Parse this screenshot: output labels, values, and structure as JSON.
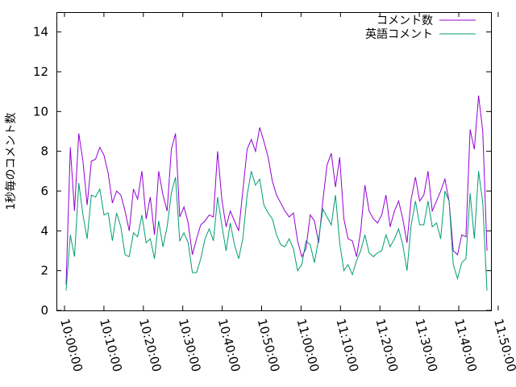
{
  "chart_data": {
    "type": "line",
    "title": "",
    "xlabel": "",
    "ylabel": "1秒毎のコメント数",
    "ylim": [
      0,
      15
    ],
    "yticks": [
      0,
      2,
      4,
      6,
      8,
      10,
      12,
      14
    ],
    "xlim_minutes": [
      0,
      50
    ],
    "xticks": [
      "10:00:00",
      "10:10:00",
      "10:20:00",
      "10:30:00",
      "10:40:00",
      "10:50:00",
      "11:00:00",
      "11:10:00",
      "11:20:00",
      "11:30:00",
      "11:40:00",
      "11:50:00"
    ],
    "legend_position": "top-right",
    "grid": false,
    "series": [
      {
        "name": "コメント数",
        "color": "#9400d3",
        "values": [
          1.3,
          8.2,
          5.0,
          8.9,
          7.5,
          5.3,
          7.5,
          7.6,
          8.2,
          7.8,
          6.9,
          5.4,
          6.0,
          5.8,
          5.0,
          4.0,
          6.1,
          5.6,
          7.0,
          4.6,
          5.7,
          3.8,
          7.0,
          5.8,
          5.0,
          8.1,
          8.9,
          4.7,
          5.2,
          4.4,
          2.8,
          3.6,
          4.3,
          4.5,
          4.8,
          4.7,
          8.0,
          5.6,
          4.2,
          5.0,
          4.5,
          4.0,
          6.0,
          8.1,
          8.6,
          8.0,
          9.2,
          8.5,
          7.7,
          6.5,
          5.8,
          5.4,
          5.0,
          4.7,
          4.9,
          3.5,
          2.7,
          3.1,
          4.8,
          4.5,
          3.4,
          5.5,
          7.3,
          7.9,
          6.2,
          7.7,
          4.6,
          3.6,
          3.5,
          2.7,
          4.0,
          6.3,
          5.0,
          4.6,
          4.4,
          4.8,
          5.8,
          4.2,
          5.0,
          5.5,
          4.6,
          3.4,
          5.6,
          6.7,
          5.5,
          5.8,
          7.0,
          5.0,
          5.5,
          6.0,
          6.6,
          5.5,
          3.0,
          2.8,
          3.8,
          3.7,
          9.1,
          8.1,
          10.8,
          9.0,
          3.0
        ]
      },
      {
        "name": "英語コメント",
        "color": "#009e73",
        "values": [
          1.0,
          3.8,
          2.7,
          6.4,
          4.8,
          3.6,
          5.8,
          5.7,
          6.1,
          4.8,
          4.9,
          3.5,
          4.9,
          4.2,
          2.8,
          2.7,
          3.9,
          3.7,
          4.8,
          3.4,
          3.6,
          2.6,
          4.5,
          3.2,
          4.2,
          5.9,
          6.7,
          3.5,
          3.9,
          3.4,
          1.9,
          1.9,
          2.6,
          3.6,
          4.1,
          3.5,
          5.7,
          4.3,
          3.0,
          4.4,
          3.3,
          2.6,
          3.6,
          5.8,
          7.0,
          6.3,
          6.6,
          5.3,
          4.9,
          4.6,
          3.8,
          3.3,
          3.2,
          3.6,
          3.1,
          2.0,
          2.3,
          3.5,
          3.3,
          2.4,
          3.6,
          5.1,
          4.7,
          4.3,
          5.8,
          3.4,
          2.0,
          2.3,
          1.8,
          2.5,
          3.0,
          3.8,
          2.9,
          2.7,
          2.9,
          3.0,
          3.8,
          3.2,
          3.6,
          4.1,
          3.3,
          2.0,
          4.3,
          5.5,
          4.3,
          4.3,
          5.5,
          4.2,
          4.4,
          3.6,
          6.0,
          5.5,
          2.3,
          1.6,
          2.4,
          2.6,
          5.9,
          3.6,
          7.0,
          5.4,
          1.0
        ]
      }
    ]
  }
}
